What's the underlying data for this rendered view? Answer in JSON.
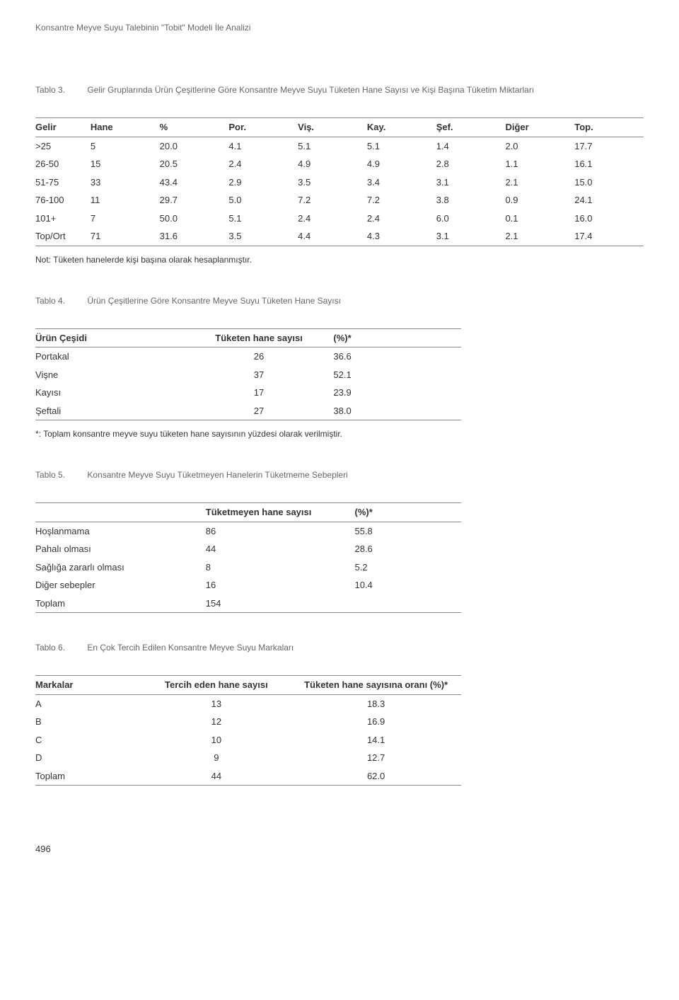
{
  "header": "Konsantre Meyve Suyu Talebinin \"Tobit\" Modeli İle Analizi",
  "page_number": "496",
  "t3": {
    "caption_num": "Tablo 3.",
    "caption_text": "Gelir Gruplarında Ürün Çeşitlerine Göre Konsantre Meyve Suyu Tüketen Hane Sayısı ve Kişi Başına Tüketim Miktarları",
    "headers": [
      "Gelir",
      "Hane",
      "%",
      "Por.",
      "Viş.",
      "Kay.",
      "Şef.",
      "Diğer",
      "Top."
    ],
    "rows": [
      [
        ">25",
        "5",
        "20.0",
        "4.1",
        "5.1",
        "5.1",
        "1.4",
        "2.0",
        "17.7"
      ],
      [
        "26-50",
        "15",
        "20.5",
        "2.4",
        "4.9",
        "4.9",
        "2.8",
        "1.1",
        "16.1"
      ],
      [
        "51-75",
        "33",
        "43.4",
        "2.9",
        "3.5",
        "3.4",
        "3.1",
        "2.1",
        "15.0"
      ],
      [
        "76-100",
        "11",
        "29.7",
        "5.0",
        "7.2",
        "7.2",
        "3.8",
        "0.9",
        "24.1"
      ],
      [
        "101+",
        "7",
        "50.0",
        "5.1",
        "2.4",
        "2.4",
        "6.0",
        "0.1",
        "16.0"
      ],
      [
        "Top/Ort",
        "71",
        "31.6",
        "3.5",
        "4.4",
        "4.3",
        "3.1",
        "2.1",
        "17.4"
      ]
    ],
    "note": "Not: Tüketen hanelerde kişi başına olarak hesaplanmıştır."
  },
  "t4": {
    "caption_num": "Tablo 4.",
    "caption_text": "Ürün Çeşitlerine Göre Konsantre  Meyve Suyu Tüketen Hane Sayısı",
    "headers": [
      "Ürün Çeşidi",
      "Tüketen hane sayısı",
      "(%)*"
    ],
    "rows": [
      [
        "Portakal",
        "26",
        "36.6"
      ],
      [
        "Vişne",
        "37",
        "52.1"
      ],
      [
        "Kayısı",
        "17",
        "23.9"
      ],
      [
        "Şeftali",
        "27",
        "38.0"
      ]
    ],
    "note": "*: Toplam konsantre meyve suyu tüketen hane sayısının yüzdesi olarak verilmiştir."
  },
  "t5": {
    "caption_num": "Tablo 5.",
    "caption_text": "Konsantre Meyve Suyu Tüketmeyen Hanelerin Tüketmeme  Sebepleri",
    "headers": [
      "",
      "Tüketmeyen hane sayısı",
      "(%)*"
    ],
    "rows": [
      [
        "Hoşlanmama",
        "86",
        "55.8"
      ],
      [
        "Pahalı olması",
        "44",
        "28.6"
      ],
      [
        "Sağlığa zararlı olması",
        "8",
        "5.2"
      ],
      [
        "Diğer sebepler",
        "16",
        "10.4"
      ],
      [
        "Toplam",
        "154",
        ""
      ]
    ]
  },
  "t6": {
    "caption_num": "Tablo 6.",
    "caption_text": "En Çok Tercih Edilen Konsantre Meyve Suyu Markaları",
    "headers": [
      "Markalar",
      "Tercih eden hane sayısı",
      "Tüketen hane sayısına oranı (%)*"
    ],
    "rows": [
      [
        "A",
        "13",
        "18.3"
      ],
      [
        "B",
        "12",
        "16.9"
      ],
      [
        "C",
        "10",
        "14.1"
      ],
      [
        "D",
        "9",
        "12.7"
      ],
      [
        "Toplam",
        "44",
        "62.0"
      ]
    ]
  }
}
